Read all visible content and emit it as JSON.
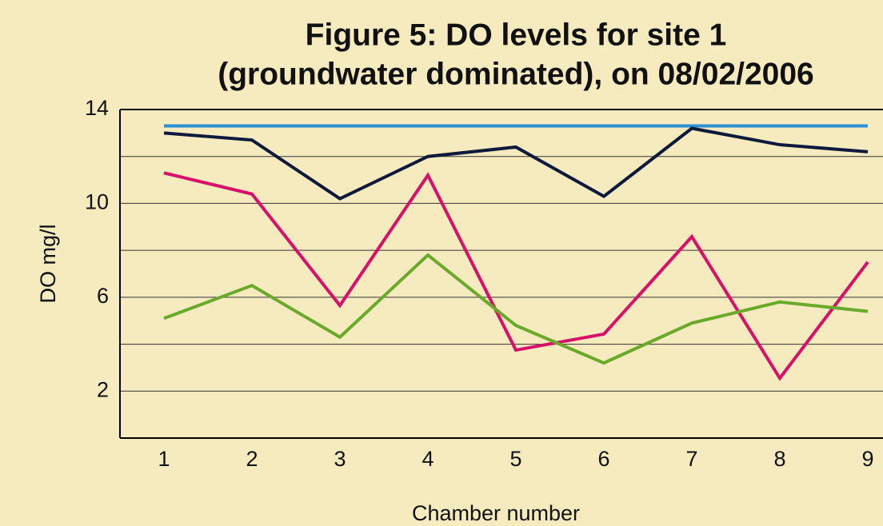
{
  "chart_data": {
    "type": "line",
    "title": [
      "Figure 5:  DO levels for site 1",
      "(groundwater dominated), on 08/02/2006"
    ],
    "x_label": "Chamber number",
    "y_label": "DO mg/l",
    "categories": [
      "1",
      "2",
      "3",
      "4",
      "5",
      "6",
      "7",
      "8",
      "9"
    ],
    "ylim": [
      0,
      14
    ],
    "yticks": [
      2,
      6,
      10,
      14
    ],
    "y_minor_grid": [
      4,
      8,
      12
    ],
    "grid": true,
    "series": [
      {
        "color": "#2a8fd6",
        "values": [
          13.3,
          13.3,
          13.3,
          13.3,
          13.3,
          13.3,
          13.3,
          13.3,
          13.3
        ]
      },
      {
        "color": "#0e1a3c",
        "values": [
          13.0,
          12.7,
          10.2,
          12.0,
          12.4,
          10.3,
          13.2,
          12.5,
          12.2
        ]
      },
      {
        "color": "#d8106a",
        "values": [
          11.3,
          10.4,
          5.65,
          11.2,
          3.75,
          4.43,
          8.58,
          2.55,
          7.5
        ]
      },
      {
        "color": "#6aaa2a",
        "values": [
          5.1,
          6.5,
          4.3,
          7.8,
          4.8,
          3.2,
          4.9,
          5.8,
          5.4
        ]
      }
    ]
  }
}
